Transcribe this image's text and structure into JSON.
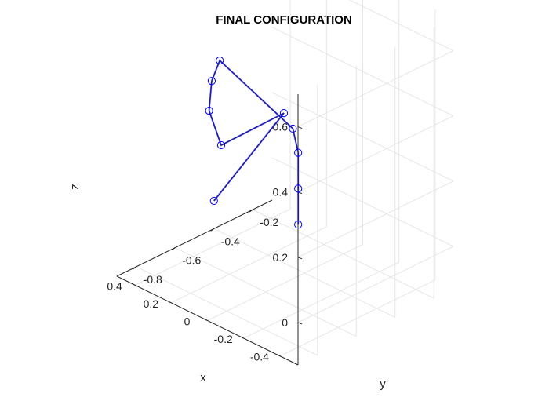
{
  "chart_data": {
    "type": "line",
    "title": "FINAL CONFIGURATION",
    "xlabel": "x",
    "ylabel": "y",
    "zlabel": "z",
    "xlim": [
      -0.5,
      0.5
    ],
    "ylim": [
      -0.9,
      -0.1
    ],
    "zlim": [
      -0.13,
      0.7
    ],
    "xticks": [
      -0.4,
      -0.2,
      0,
      0.2,
      0.4
    ],
    "xtick_labels": [
      "-0.4",
      "-0.2",
      "0",
      "0.2",
      "0.4"
    ],
    "yticks": [
      -0.8,
      -0.6,
      -0.4,
      -0.2
    ],
    "ytick_labels": [
      "-0.8",
      "-0.6",
      "-0.4",
      "-0.2"
    ],
    "zticks": [
      0,
      0.2,
      0.4,
      0.6
    ],
    "ztick_labels": [
      "0",
      "0.2",
      "0.4",
      "0.6"
    ],
    "grid": true,
    "marker": "circle",
    "line_color": "#1a1ab0",
    "marker_color": "#0000ff",
    "series": [
      {
        "x": [
          -0.04,
          -0.04,
          -0.04,
          0.0,
          0.2,
          0.18,
          0.13,
          0.16,
          -0.09,
          0.05
        ],
        "y": [
          -0.47,
          -0.47,
          -0.47,
          -0.46,
          -0.65,
          -0.71,
          -0.77,
          -0.68,
          -0.59,
          -0.82
        ],
        "z": [
          0.05,
          0.16,
          0.27,
          0.33,
          0.54,
          0.5,
          0.44,
          0.3,
          0.44,
          0.2
        ]
      }
    ]
  }
}
